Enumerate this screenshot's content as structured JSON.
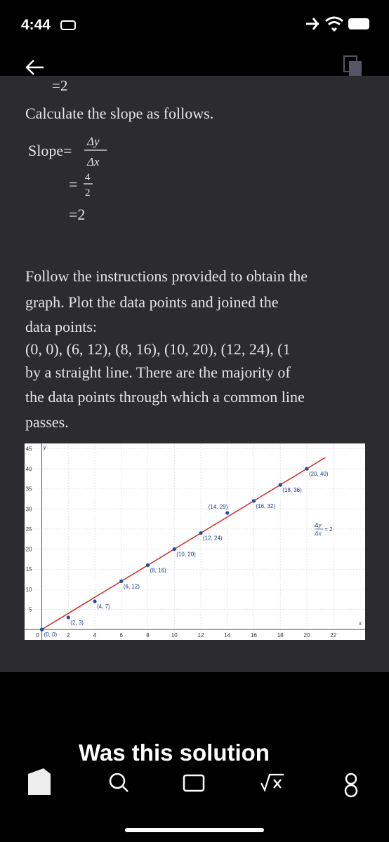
{
  "status_bar": {
    "time": "4:44"
  },
  "math": {
    "prev_result": "=2",
    "intro": "Calculate the slope as follows.",
    "slope_label": "Slope=",
    "delta_y": "Δy",
    "delta_x": "Δx",
    "eq": "=",
    "num": "4",
    "den": "2",
    "result": "=2"
  },
  "paragraph": {
    "lines": [
      "Follow the instructions provided to obtain the",
      "graph. Plot the data points and joined the",
      "data points:",
      "(0, 0), (6, 12), (8, 16), (10, 20), (12, 24), (1",
      "by a straight line. There are the majority of",
      "the data points through which a common line",
      "passes."
    ]
  },
  "graph": {
    "type": "scatter",
    "x_axis_label": "x",
    "y_axis_label": "y",
    "xlim": [
      -1.3,
      24.4
    ],
    "ylim": [
      -2.6,
      46.3
    ],
    "xticks": [
      0,
      2,
      4,
      6,
      8,
      10,
      12,
      14,
      16,
      18,
      20,
      22
    ],
    "yticks": [
      5,
      10,
      15,
      20,
      25,
      30,
      35,
      40,
      45
    ],
    "grid": true,
    "points": {
      "x": [
        0,
        2,
        4,
        6,
        8,
        10,
        12,
        14,
        16,
        18,
        20
      ],
      "y": [
        0,
        3,
        7,
        12,
        16,
        20,
        24,
        29,
        32,
        36,
        40
      ],
      "labels": [
        "(0, 0)",
        "(2, 3)",
        "(4, 7)",
        "(6, 12)",
        "(8, 16)",
        "(10, 20)",
        "(12, 24)",
        "(14, 29)",
        "(16, 32)",
        "(18, 36)",
        "(20, 40)"
      ],
      "color": "#1f4aa8"
    },
    "line": {
      "x": [
        0,
        21.4
      ],
      "y": [
        0,
        42.8
      ],
      "color": "#cc2b2b"
    },
    "annotation": {
      "numerator": "Δy",
      "denominator": "Δx",
      "text": "= 2"
    }
  },
  "feedback": {
    "question": "Was this solution"
  }
}
